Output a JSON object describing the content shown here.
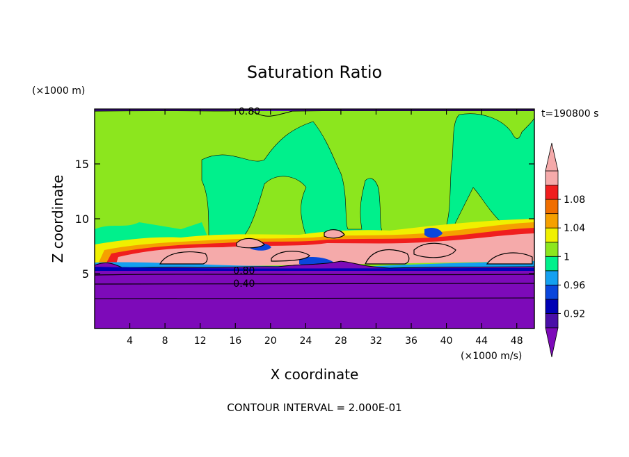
{
  "chart_data": {
    "type": "contour",
    "title": "Saturation Ratio",
    "xlabel": "X coordinate",
    "ylabel": "Z coordinate",
    "x_unit": "(×1000 m/s)",
    "y_unit": "(×1000 m)",
    "time_label": "t=190800 s",
    "footer": "CONTOUR INTERVAL = 2.000E-01",
    "xlim": [
      0,
      50
    ],
    "ylim": [
      0,
      20
    ],
    "x_ticks": [
      4,
      8,
      12,
      16,
      20,
      24,
      28,
      32,
      36,
      40,
      44,
      48
    ],
    "y_ticks": [
      5,
      10,
      15
    ],
    "contour_labels": [
      {
        "text": "0.80",
        "x": 17.6,
        "y": 19.8
      },
      {
        "text": "0.80",
        "x": 17.0,
        "y": 5.3
      },
      {
        "text": "0.40",
        "x": 17.0,
        "y": 4.1
      }
    ],
    "colorbar": {
      "levels": [
        0.9,
        0.92,
        0.94,
        0.96,
        0.98,
        1.0,
        1.02,
        1.04,
        1.06,
        1.08,
        1.1
      ],
      "tick_labels": [
        "0.92",
        "0.96",
        "1",
        "1.04",
        "1.08"
      ],
      "colors": [
        "#4a0fa8",
        "#0000b4",
        "#0a46dc",
        "#14a0f0",
        "#00f08c",
        "#8ce61e",
        "#f0f000",
        "#f5a000",
        "#f06e00",
        "#f01e1e",
        "#f5aaaa"
      ],
      "under_color": "#7d0ab9",
      "over_color": "#f5aaaa"
    },
    "regions": [
      {
        "name": "dry-lower-layer",
        "color": "#7d0ab9",
        "z_range": [
          0,
          5.6
        ]
      },
      {
        "name": "near-saturation-upper",
        "color": "#8ce61e",
        "z_range": [
          6,
          19.8
        ]
      },
      {
        "name": "saturated-cloud-layer",
        "color": "#f5aaaa",
        "z_range": [
          5.8,
          8.5
        ]
      }
    ]
  }
}
